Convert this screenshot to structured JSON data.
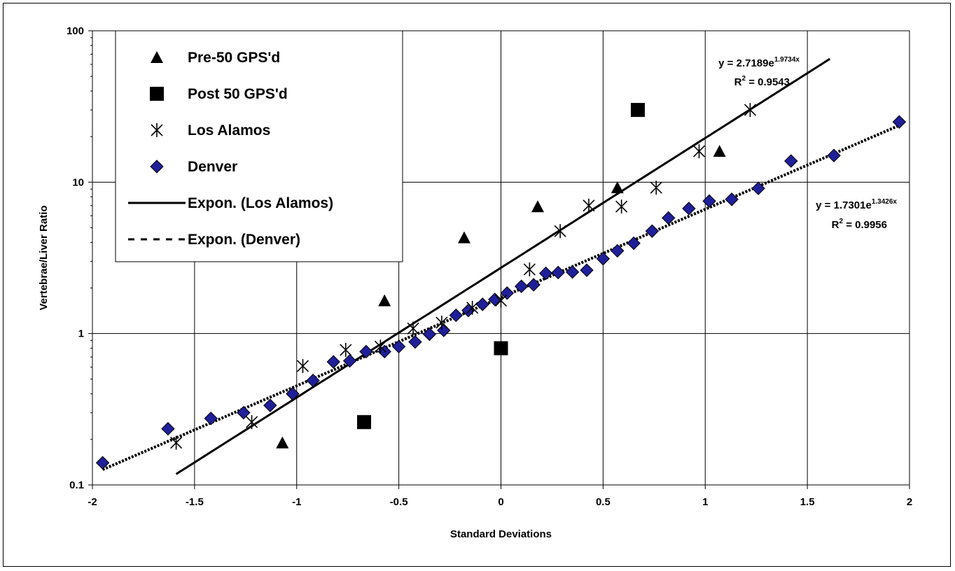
{
  "chart_data": {
    "type": "scatter",
    "xlabel": "Standard Deviations",
    "ylabel": "Vertebrae/Liver Ratio",
    "xlim": [
      -2,
      2
    ],
    "ylim": [
      0.1,
      100
    ],
    "yscale": "log",
    "grid": true,
    "legend_position": "top-left",
    "x_ticks": [
      "-2",
      "-1.5",
      "-1",
      "-0.5",
      "0",
      "0.5",
      "1",
      "1.5",
      "2"
    ],
    "y_ticks": [
      "0.1",
      "1",
      "10",
      "100"
    ],
    "series": [
      {
        "name": "Pre-50 GPS'd",
        "marker": "triangle",
        "color": "#000000",
        "points": [
          [
            -1.07,
            0.19
          ],
          [
            -0.57,
            1.65
          ],
          [
            -0.18,
            4.3
          ],
          [
            0.18,
            6.9
          ],
          [
            0.57,
            9.2
          ],
          [
            1.07,
            16
          ]
        ]
      },
      {
        "name": "Post 50 GPS'd",
        "marker": "square",
        "color": "#000000",
        "points": [
          [
            -0.67,
            0.26
          ],
          [
            0.0,
            0.8
          ],
          [
            0.67,
            30
          ]
        ]
      },
      {
        "name": "Los Alamos",
        "marker": "asterisk",
        "color": "#000000",
        "points": [
          [
            -1.59,
            0.19
          ],
          [
            -1.22,
            0.26
          ],
          [
            -0.97,
            0.61
          ],
          [
            -0.76,
            0.78
          ],
          [
            -0.59,
            0.82
          ],
          [
            -0.43,
            1.08
          ],
          [
            -0.29,
            1.18
          ],
          [
            -0.14,
            1.48
          ],
          [
            0.0,
            1.65
          ],
          [
            0.14,
            2.65
          ],
          [
            0.29,
            4.75
          ],
          [
            0.43,
            7.0
          ],
          [
            0.59,
            6.9
          ],
          [
            0.76,
            9.2
          ],
          [
            0.97,
            16
          ],
          [
            1.22,
            30
          ]
        ]
      },
      {
        "name": "Denver",
        "marker": "diamond",
        "color": "#1f1f99",
        "points": [
          [
            -1.95,
            0.14
          ],
          [
            -1.63,
            0.235
          ],
          [
            -1.42,
            0.275
          ],
          [
            -1.26,
            0.3
          ],
          [
            -1.13,
            0.335
          ],
          [
            -1.02,
            0.4
          ],
          [
            -0.92,
            0.49
          ],
          [
            -0.82,
            0.65
          ],
          [
            -0.74,
            0.66
          ],
          [
            -0.66,
            0.76
          ],
          [
            -0.57,
            0.76
          ],
          [
            -0.5,
            0.82
          ],
          [
            -0.42,
            0.88
          ],
          [
            -0.35,
            0.99
          ],
          [
            -0.28,
            1.05
          ],
          [
            -0.22,
            1.32
          ],
          [
            -0.16,
            1.42
          ],
          [
            -0.09,
            1.56
          ],
          [
            -0.03,
            1.68
          ],
          [
            0.03,
            1.85
          ],
          [
            0.1,
            2.05
          ],
          [
            0.16,
            2.1
          ],
          [
            0.22,
            2.5
          ],
          [
            0.28,
            2.53
          ],
          [
            0.35,
            2.55
          ],
          [
            0.42,
            2.62
          ],
          [
            0.5,
            3.12
          ],
          [
            0.57,
            3.52
          ],
          [
            0.65,
            3.95
          ],
          [
            0.74,
            4.75
          ],
          [
            0.82,
            5.8
          ],
          [
            0.92,
            6.7
          ],
          [
            1.02,
            7.5
          ],
          [
            1.13,
            7.7
          ],
          [
            1.26,
            9.1
          ],
          [
            1.42,
            13.8
          ],
          [
            1.63,
            15
          ],
          [
            1.95,
            25
          ]
        ]
      }
    ],
    "trendlines": [
      {
        "name": "Expon. (Los Alamos)",
        "style": "solid",
        "a": 2.7189,
        "b": 1.9734,
        "x_range": [
          -1.59,
          1.61
        ],
        "equation_base": "y = 2.7189e",
        "equation_exp": "1.9734x",
        "r2_text": "= 0.9543"
      },
      {
        "name": "Expon. (Denver)",
        "style": "dashed",
        "a": 1.7301,
        "b": 1.3426,
        "x_range": [
          -1.95,
          1.95
        ],
        "equation_base": "y = 1.7301e",
        "equation_exp": "1.3426x",
        "r2_text": "= 0.9956"
      }
    ]
  }
}
